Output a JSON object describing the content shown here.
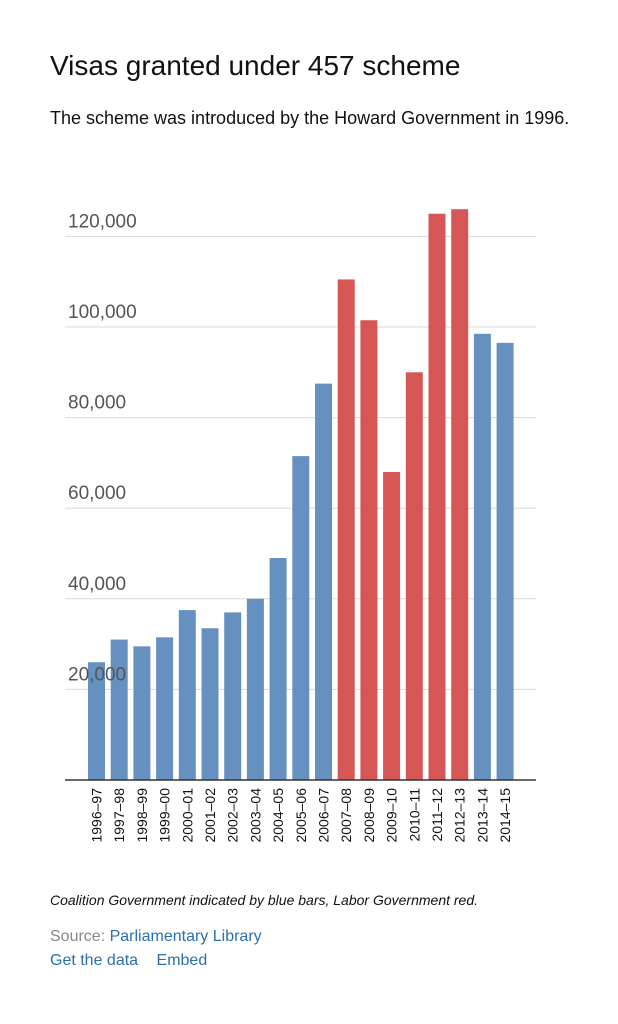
{
  "header": {
    "title": "Visas granted under 457 scheme",
    "subtitle": "The scheme was introduced by the Howard Government in 1996."
  },
  "footer": {
    "note": "Coalition Government indicated by blue bars, Labor Government red.",
    "source_label": "Source: ",
    "source_link": "Parliamentary Library",
    "get_data": "Get the data",
    "embed": "Embed"
  },
  "colors": {
    "coalition": "#6690c0",
    "labor": "#d65555"
  },
  "chart_data": {
    "type": "bar",
    "title": "Visas granted under 457 scheme",
    "xlabel": "",
    "ylabel": "",
    "ylim": [
      0,
      125000
    ],
    "grid": true,
    "yticks": [
      20000,
      40000,
      60000,
      80000,
      100000,
      120000
    ],
    "ytick_labels": [
      "20,000",
      "40,000",
      "60,000",
      "80,000",
      "100,000",
      "120,000"
    ],
    "categories": [
      "1996–97",
      "1997–98",
      "1998–99",
      "1999–00",
      "2000–01",
      "2001–02",
      "2002–03",
      "2003–04",
      "2004–05",
      "2005–06",
      "2006–07",
      "2007–08",
      "2008–09",
      "2009–10",
      "2010–11",
      "2011–12",
      "2012–13",
      "2013–14",
      "2014–15"
    ],
    "values": [
      26000,
      31000,
      29500,
      31500,
      37500,
      33500,
      37000,
      40000,
      49000,
      71500,
      87500,
      110500,
      101500,
      68000,
      90000,
      125000,
      126000,
      98500,
      96500
    ],
    "government": [
      "coalition",
      "coalition",
      "coalition",
      "coalition",
      "coalition",
      "coalition",
      "coalition",
      "coalition",
      "coalition",
      "coalition",
      "coalition",
      "labor",
      "labor",
      "labor",
      "labor",
      "labor",
      "labor",
      "coalition",
      "coalition"
    ]
  }
}
